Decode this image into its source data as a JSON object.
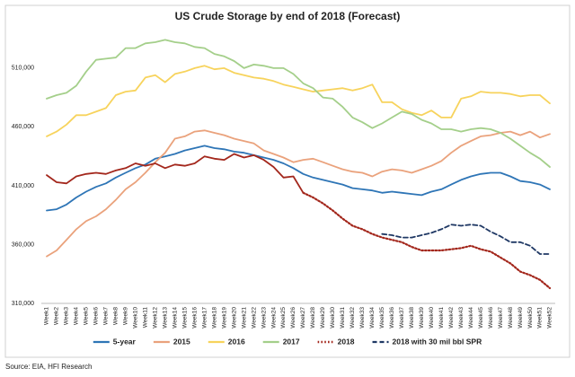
{
  "chart_data": {
    "type": "line",
    "title": "US Crude Storage by end of 2018 (Forecast)",
    "source": "Source: EIA, HFI Research",
    "categories": [
      "Week1",
      "Week2",
      "Week3",
      "Week4",
      "Week5",
      "Week6",
      "Week7",
      "Week8",
      "Week9",
      "Week10",
      "Week11",
      "Week12",
      "Week13",
      "Week14",
      "Week15",
      "Week16",
      "Week17",
      "Week18",
      "Week19",
      "Week20",
      "Week21",
      "Week22",
      "Week23",
      "Week24",
      "Week25",
      "Week26",
      "Week27",
      "Week28",
      "Week29",
      "Week30",
      "Week31",
      "Week32",
      "Week33",
      "Week34",
      "Week35",
      "Week36",
      "Week37",
      "Week38",
      "Week39",
      "Week40",
      "Week41",
      "Week42",
      "Week43",
      "Week44",
      "Week45",
      "Week46",
      "Week47",
      "Week48",
      "Week49",
      "Week50",
      "Week51",
      "Week52"
    ],
    "ylim": [
      310000,
      545000
    ],
    "yticks": [
      {
        "value": 310000,
        "label": "310,000"
      },
      {
        "value": 360000,
        "label": "360,000"
      },
      {
        "value": 410000,
        "label": "410,000"
      },
      {
        "value": 460000,
        "label": "460,000"
      },
      {
        "value": 510000,
        "label": "510,000"
      }
    ],
    "grid": false,
    "legend": "bottom",
    "series": [
      {
        "name": "5-year",
        "color": "#2e75b6",
        "style": "solid",
        "values": [
          389000,
          390000,
          394000,
          400000,
          405000,
          409000,
          412000,
          417000,
          421000,
          425000,
          428000,
          433000,
          435000,
          437000,
          440000,
          442000,
          444000,
          442000,
          441000,
          439000,
          438000,
          436000,
          434000,
          432000,
          429000,
          425000,
          420000,
          417000,
          415000,
          413000,
          411000,
          408000,
          407000,
          406000,
          404000,
          405000,
          404000,
          403000,
          402000,
          405000,
          407000,
          411000,
          415000,
          418000,
          420000,
          421000,
          421000,
          418000,
          414000,
          413000,
          411000,
          407000
        ]
      },
      {
        "name": "2015",
        "color": "#eaa27c",
        "style": "solid",
        "values": [
          350000,
          355000,
          364000,
          373000,
          380000,
          384000,
          390000,
          398000,
          407000,
          413000,
          421000,
          430000,
          438000,
          450000,
          452000,
          456000,
          457000,
          455000,
          453000,
          450000,
          448000,
          446000,
          440000,
          437000,
          434000,
          430000,
          432000,
          433000,
          430000,
          427000,
          424000,
          422000,
          421000,
          418000,
          422000,
          424000,
          423000,
          421000,
          424000,
          427000,
          431000,
          438000,
          444000,
          448000,
          452000,
          453000,
          455000,
          456000,
          453000,
          456000,
          451000,
          454000
        ]
      },
      {
        "name": "2016",
        "color": "#f7d35c",
        "style": "solid",
        "values": [
          452000,
          456000,
          462000,
          470000,
          470000,
          473000,
          476000,
          487000,
          490000,
          491000,
          502000,
          504000,
          498000,
          505000,
          507000,
          510000,
          512000,
          509000,
          510000,
          506000,
          504000,
          502000,
          501000,
          499000,
          496000,
          494000,
          492000,
          490000,
          491000,
          492000,
          493000,
          491000,
          493000,
          496000,
          481000,
          481000,
          475000,
          472000,
          470000,
          474000,
          468000,
          468000,
          484000,
          486000,
          490000,
          489000,
          489000,
          488000,
          486000,
          487000,
          487000,
          480000
        ]
      },
      {
        "name": "2017",
        "color": "#a4cf8a",
        "style": "solid",
        "values": [
          484000,
          487000,
          489000,
          495000,
          507000,
          517000,
          518000,
          519000,
          527000,
          527000,
          531000,
          532000,
          534000,
          532000,
          531000,
          528000,
          527000,
          522000,
          520000,
          516000,
          510000,
          513000,
          512000,
          510000,
          510000,
          505000,
          497000,
          493000,
          485000,
          484000,
          477000,
          468000,
          464000,
          459000,
          463000,
          468000,
          473000,
          471000,
          466000,
          463000,
          458000,
          458000,
          456000,
          458000,
          459000,
          458000,
          455000,
          450000,
          444000,
          438000,
          433000,
          426000
        ]
      },
      {
        "name": "2018",
        "color": "#a3271c",
        "style": "dotted",
        "dotted_from": "Week27",
        "values": [
          419000,
          413000,
          412000,
          418000,
          420000,
          421000,
          420000,
          423000,
          425000,
          429000,
          427000,
          429000,
          425000,
          428000,
          427000,
          429000,
          435000,
          433000,
          432000,
          437000,
          434000,
          436000,
          432000,
          426000,
          417000,
          418000,
          404000,
          400000,
          395000,
          389000,
          382000,
          376000,
          373000,
          369000,
          366000,
          364000,
          362000,
          358000,
          355000,
          355000,
          355000,
          356000,
          357000,
          359000,
          356000,
          354000,
          349000,
          344000,
          337000,
          334000,
          330000,
          323000
        ]
      },
      {
        "name": "2018 with 30 mil bbl SPR",
        "color": "#1f3864",
        "style": "dashed",
        "values": [
          null,
          null,
          null,
          null,
          null,
          null,
          null,
          null,
          null,
          null,
          null,
          null,
          null,
          null,
          null,
          null,
          null,
          null,
          null,
          null,
          null,
          null,
          null,
          null,
          null,
          null,
          null,
          null,
          null,
          null,
          null,
          null,
          null,
          null,
          369000,
          368000,
          366000,
          366000,
          368000,
          370000,
          373000,
          377000,
          376000,
          377000,
          376000,
          371000,
          367000,
          362000,
          362000,
          359000,
          352000,
          352000
        ]
      }
    ]
  }
}
